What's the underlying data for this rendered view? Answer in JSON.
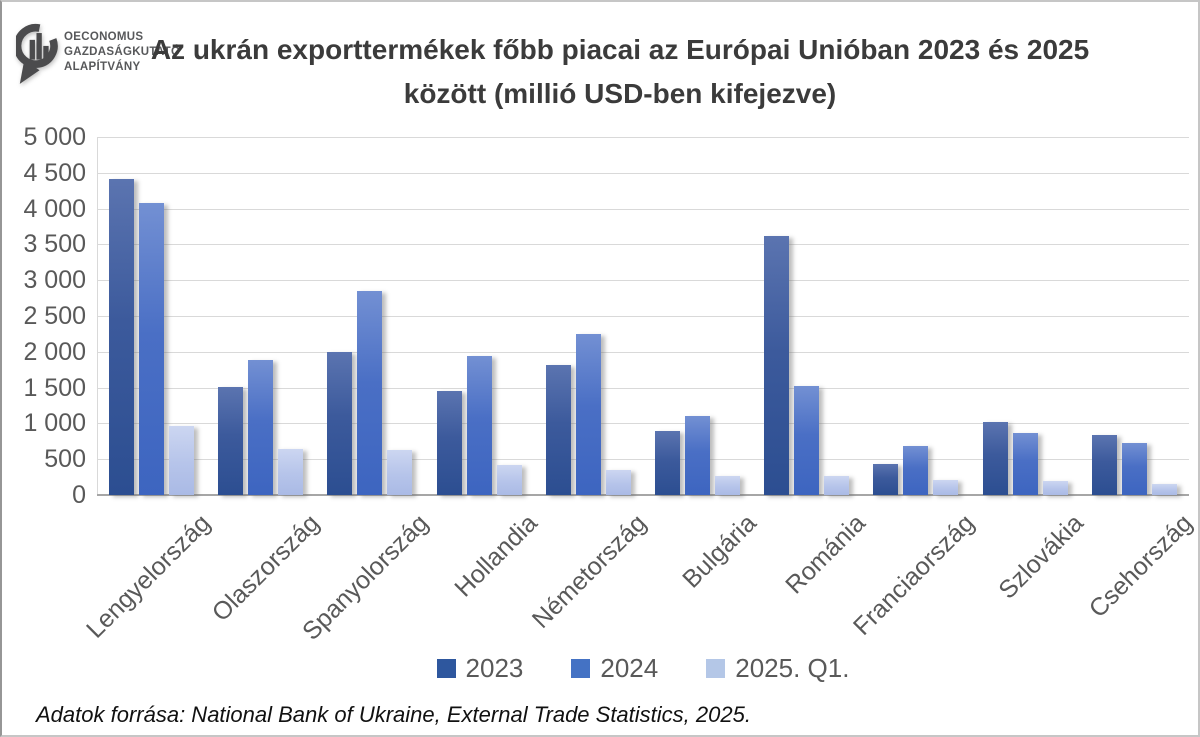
{
  "logo": {
    "lines": [
      "OECONOMUS",
      "GAZDASÁGKUTATÓ",
      "ALAPÍTVÁNY"
    ]
  },
  "title": {
    "line1": "Az ukrán exporttermékek főbb piacai az Európai Unióban 2023 és 2025",
    "line2": "között (millió USD-ben kifejezve)"
  },
  "source_note": "Adatok forrása: National Bank of Ukraine, External Trade Statistics, 2025.",
  "colors": {
    "series_2023": "#2E579E",
    "series_2024": "#4472C4",
    "series_2025_q1": "#B4C7E7",
    "gridline": "#D9D9D9",
    "axis_line": "#A6A6A6",
    "label_text": "#595959",
    "title_text": "#3B3B3B",
    "logo_gray": "#4B4B4D"
  },
  "chart_data": {
    "type": "bar",
    "title": "Az ukrán exporttermékek főbb piacai az Európai Unióban 2023 és 2025 között (millió USD-ben kifejezve)",
    "xlabel": "",
    "ylabel": "",
    "ylim": [
      0,
      5000
    ],
    "ytick_step": 500,
    "ytick_labels": [
      "5 000",
      "4 500",
      "4 000",
      "3 500",
      "3 000",
      "2 500",
      "2 000",
      "1 500",
      "1 000",
      "500",
      "0"
    ],
    "grid": true,
    "legend_position": "bottom",
    "categories": [
      "Lengyelország",
      "Olaszország",
      "Spanyolország",
      "Hollandia",
      "Németország",
      "Bulgária",
      "Románia",
      "Franciaország",
      "Szlovákia",
      "Csehország"
    ],
    "series": [
      {
        "name": "2023",
        "color": "#2E579E",
        "values": [
          4420,
          1510,
          2000,
          1450,
          1820,
          890,
          3620,
          440,
          1020,
          840
        ]
      },
      {
        "name": "2024",
        "color": "#4472C4",
        "values": [
          4080,
          1880,
          2850,
          1940,
          2250,
          1110,
          1520,
          690,
          870,
          720
        ]
      },
      {
        "name": "2025. Q1.",
        "color": "#B4C7E7",
        "values": [
          970,
          650,
          630,
          420,
          350,
          270,
          260,
          210,
          200,
          160
        ]
      }
    ]
  }
}
